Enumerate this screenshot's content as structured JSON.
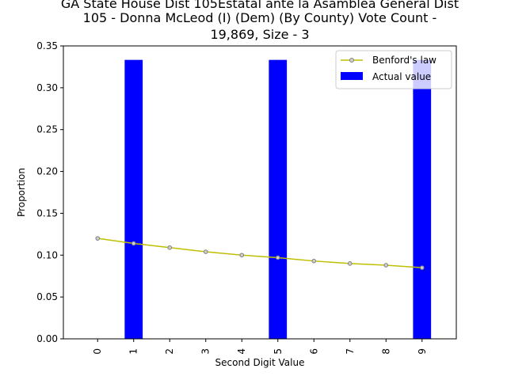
{
  "chart_data": {
    "type": "bar",
    "title_lines": [
      "GA State House Dist 105Estatal ante la Asamblea General Dist",
      "105 - Donna McLeod (I) (Dem) (By County) Vote Count -",
      "19,869, Size - 3"
    ],
    "xlabel": "Second Digit Value",
    "ylabel": "Proportion",
    "categories": [
      "0",
      "1",
      "2",
      "3",
      "4",
      "5",
      "6",
      "7",
      "8",
      "9"
    ],
    "ylim": [
      0,
      0.35
    ],
    "yticks": [
      "0.00",
      "0.05",
      "0.10",
      "0.15",
      "0.20",
      "0.25",
      "0.30",
      "0.35"
    ],
    "legend_position": "top-right",
    "grid": false,
    "series": [
      {
        "name": "Benford's law",
        "kind": "line",
        "color": "#bfbf00",
        "values": [
          0.12,
          0.114,
          0.109,
          0.104,
          0.1,
          0.097,
          0.093,
          0.09,
          0.088,
          0.085
        ]
      },
      {
        "name": "Actual value",
        "kind": "bar",
        "color": "#0000ff",
        "values": [
          0,
          0.3333,
          0,
          0,
          0,
          0.3333,
          0,
          0,
          0,
          0.3333
        ]
      }
    ]
  }
}
